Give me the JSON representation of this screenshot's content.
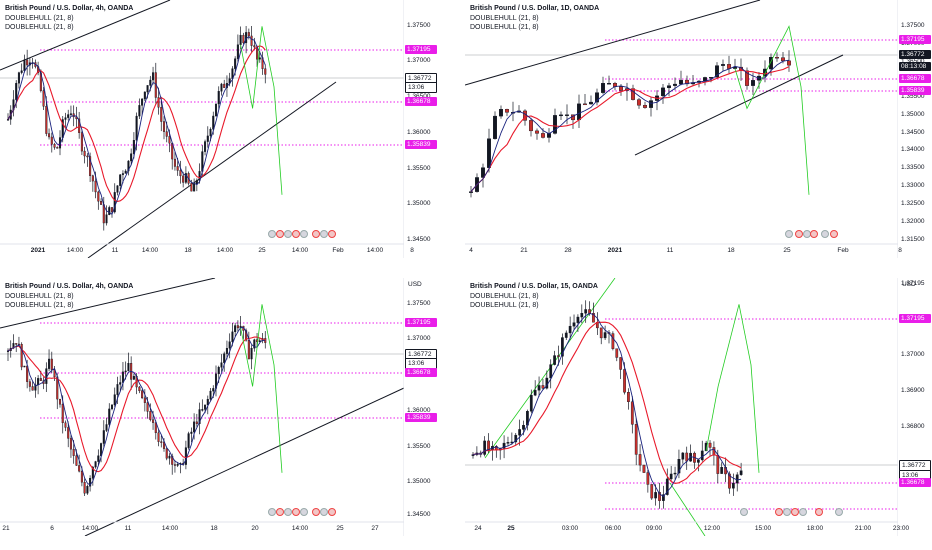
{
  "colors": {
    "magenta": "#e91ee9",
    "up": "#131722",
    "down": "#c9302c",
    "ma_red": "#e81a2b",
    "ma_navy": "#1a237e",
    "green": "#22cc22",
    "trend": "#131722"
  },
  "panels": [
    {
      "id": "top-left",
      "title": "British Pound / U.S. Dollar, 4h, OANDA",
      "indicators": [
        "DOUBLEHULL (21, 8)",
        "DOUBLEHULL (21, 8)"
      ],
      "price_ticks": [
        "1.37500",
        "1.37000",
        "1.36500",
        "1.36000",
        "1.35500",
        "1.35000",
        "1.34500"
      ],
      "tags": [
        {
          "text": "1.37195",
          "style": "mag"
        },
        {
          "text": "1.36772",
          "style": "wht"
        },
        {
          "text": "13:06",
          "style": "wht"
        },
        {
          "text": "1.36678",
          "style": "mag"
        },
        {
          "text": "1.35839",
          "style": "mag"
        }
      ],
      "time_ticks": [
        {
          "t": "2021",
          "b": true
        },
        {
          "t": "14:00"
        },
        {
          "t": "11"
        },
        {
          "t": "14:00"
        },
        {
          "t": "18"
        },
        {
          "t": "14:00"
        },
        {
          "t": "25"
        },
        {
          "t": "14:00"
        },
        {
          "t": "Feb",
          "b": false
        },
        {
          "t": "14:00"
        },
        {
          "t": "8"
        }
      ],
      "ylim": [
        1.343,
        1.377
      ]
    },
    {
      "id": "top-right",
      "title": "British Pound / U.S. Dollar, 1D, OANDA",
      "indicators": [
        "DOUBLEHULL (21, 8)",
        "DOUBLEHULL (21, 8)"
      ],
      "price_ticks": [
        "1.37500",
        "1.37000",
        "1.36500",
        "1.36000",
        "1.35500",
        "1.35000",
        "1.34500",
        "1.34000",
        "1.33500",
        "1.33000",
        "1.32500",
        "1.32000",
        "1.31500"
      ],
      "tags": [
        {
          "text": "1.37195",
          "style": "mag"
        },
        {
          "text": "1.36772",
          "style": "blk"
        },
        {
          "text": "08:13:08",
          "style": "blk"
        },
        {
          "text": "1.36678",
          "style": "mag"
        },
        {
          "text": "1.35839",
          "style": "mag"
        }
      ],
      "time_ticks": [
        {
          "t": "4"
        },
        {
          "t": "21"
        },
        {
          "t": "28"
        },
        {
          "t": "2021",
          "b": true
        },
        {
          "t": "11"
        },
        {
          "t": "18"
        },
        {
          "t": "25"
        },
        {
          "t": "Feb"
        },
        {
          "t": "8"
        }
      ],
      "ylim": [
        1.313,
        1.378
      ]
    },
    {
      "id": "bottom-left",
      "title": "British Pound / U.S. Dollar, 4h, OANDA",
      "indicators": [
        "DOUBLEHULL (21, 8)",
        "DOUBLEHULL (21, 8)"
      ],
      "currency": "USD",
      "price_ticks": [
        "1.37500",
        "1.37000",
        "1.36500",
        "1.36000",
        "1.35500",
        "1.35000",
        "1.34500"
      ],
      "tags": [
        {
          "text": "1.37195",
          "style": "mag"
        },
        {
          "text": "1.36772",
          "style": "wht"
        },
        {
          "text": "13:06",
          "style": "wht"
        },
        {
          "text": "1.36678",
          "style": "mag"
        },
        {
          "text": "1.35839",
          "style": "mag"
        }
      ],
      "time_ticks": [
        {
          "t": "21"
        },
        {
          "t": "6"
        },
        {
          "t": "14:00"
        },
        {
          "t": "11"
        },
        {
          "t": "14:00"
        },
        {
          "t": "18"
        },
        {
          "t": "20"
        },
        {
          "t": "14:00"
        },
        {
          "t": "25"
        },
        {
          "t": "27"
        }
      ],
      "ylim": [
        1.343,
        1.377
      ]
    },
    {
      "id": "bottom-right",
      "title": "British Pound / U.S. Dollar, 15, OANDA",
      "indicators": [
        "DOUBLEHULL (21, 8)",
        "DOUBLEHULL (21, 8)"
      ],
      "currency": "USD",
      "price_ticks": [
        "1.37195",
        "1.37100",
        "1.37000",
        "1.36900",
        "1.36800",
        "1.36700"
      ],
      "tags": [
        {
          "text": "1.37195",
          "style": "mag"
        },
        {
          "text": "1.36772",
          "style": "wht"
        },
        {
          "text": "13:06",
          "style": "wht"
        },
        {
          "text": "1.36678",
          "style": "mag"
        }
      ],
      "time_ticks": [
        {
          "t": "24"
        },
        {
          "t": "25",
          "b": true
        },
        {
          "t": "03:00"
        },
        {
          "t": "06:00"
        },
        {
          "t": "09:00"
        },
        {
          "t": "12:00"
        },
        {
          "t": "15:00"
        },
        {
          "t": "18:00"
        },
        {
          "t": "21:00"
        },
        {
          "t": "23:00"
        }
      ],
      "ylim": [
        1.3665,
        1.3725
      ]
    }
  ]
}
